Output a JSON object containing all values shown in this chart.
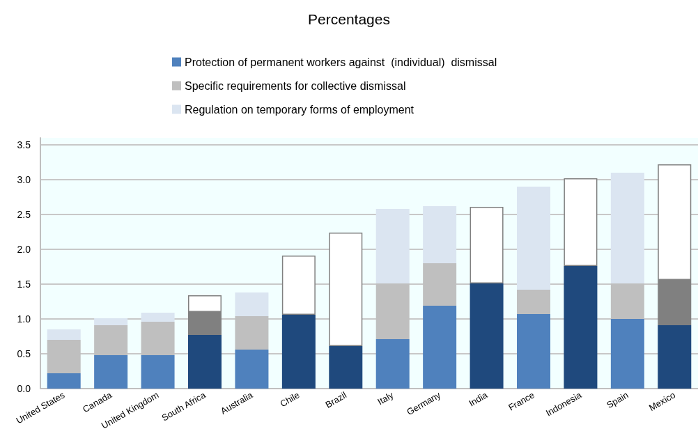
{
  "chart_data": {
    "type": "bar",
    "title": "Percentages",
    "stacked": true,
    "legend": "top",
    "grid": "y",
    "categories": [
      "United States",
      "Canada",
      "United Kingdom",
      "South Africa",
      "Australia",
      "Chile",
      "Brazil",
      "Italy",
      "Germany",
      "India",
      "France",
      "Indonesia",
      "Spain",
      "Mexico"
    ],
    "series": [
      {
        "name": "Protection of permanent workers against  (individual)  dismissal",
        "color": "#4f81bd",
        "values": [
          0.22,
          0.48,
          0.48,
          0.77,
          0.56,
          1.06,
          0.61,
          0.71,
          1.19,
          1.51,
          1.07,
          1.76,
          1.0,
          0.91
        ],
        "colors": [
          "#4f81bd",
          "#4f81bd",
          "#4f81bd",
          "#1f497d",
          "#4f81bd",
          "#1f497d",
          "#1f497d",
          "#4f81bd",
          "#4f81bd",
          "#1f497d",
          "#4f81bd",
          "#1f497d",
          "#4f81bd",
          "#1f497d"
        ]
      },
      {
        "name": "Specific requirements for collective dismissal",
        "color": "#bfbfbf",
        "values": [
          0.48,
          0.43,
          0.48,
          0.33,
          0.48,
          null,
          null,
          0.8,
          0.61,
          null,
          0.35,
          null,
          0.51,
          0.65
        ],
        "colors": [
          "#bfbfbf",
          "#bfbfbf",
          "#bfbfbf",
          "#808080",
          "#bfbfbf",
          "#808080",
          "#808080",
          "#bfbfbf",
          "#bfbfbf",
          "#808080",
          "#bfbfbf",
          "#808080",
          "#bfbfbf",
          "#808080"
        ]
      },
      {
        "name": "Regulation on temporary forms of employment",
        "color": "#dbe5f1",
        "values": [
          0.15,
          0.1,
          0.13,
          0.24,
          0.34,
          0.85,
          1.63,
          1.07,
          0.82,
          1.1,
          1.48,
          1.26,
          1.59,
          1.66
        ],
        "colors": [
          "#dbe5f1",
          "#dbe5f1",
          "#dbe5f1",
          "#ffffff",
          "#dbe5f1",
          "#ffffff",
          "#ffffff",
          "#dbe5f1",
          "#dbe5f1",
          "#ffffff",
          "#dbe5f1",
          "#ffffff",
          "#dbe5f1",
          "#ffffff"
        ]
      }
    ],
    "ylim": [
      0,
      3.6
    ],
    "yticks": [
      {
        "value": 0,
        "label": "0.0"
      },
      {
        "value": 0.5,
        "label": "0.5"
      },
      {
        "value": 1,
        "label": "1.0"
      },
      {
        "value": 1.5,
        "label": "1.5"
      },
      {
        "value": 2,
        "label": "2.0"
      },
      {
        "value": 2.5,
        "label": "2.5"
      },
      {
        "value": 3,
        "label": "3.0"
      },
      {
        "value": 3.5,
        "label": "3.5"
      }
    ]
  }
}
